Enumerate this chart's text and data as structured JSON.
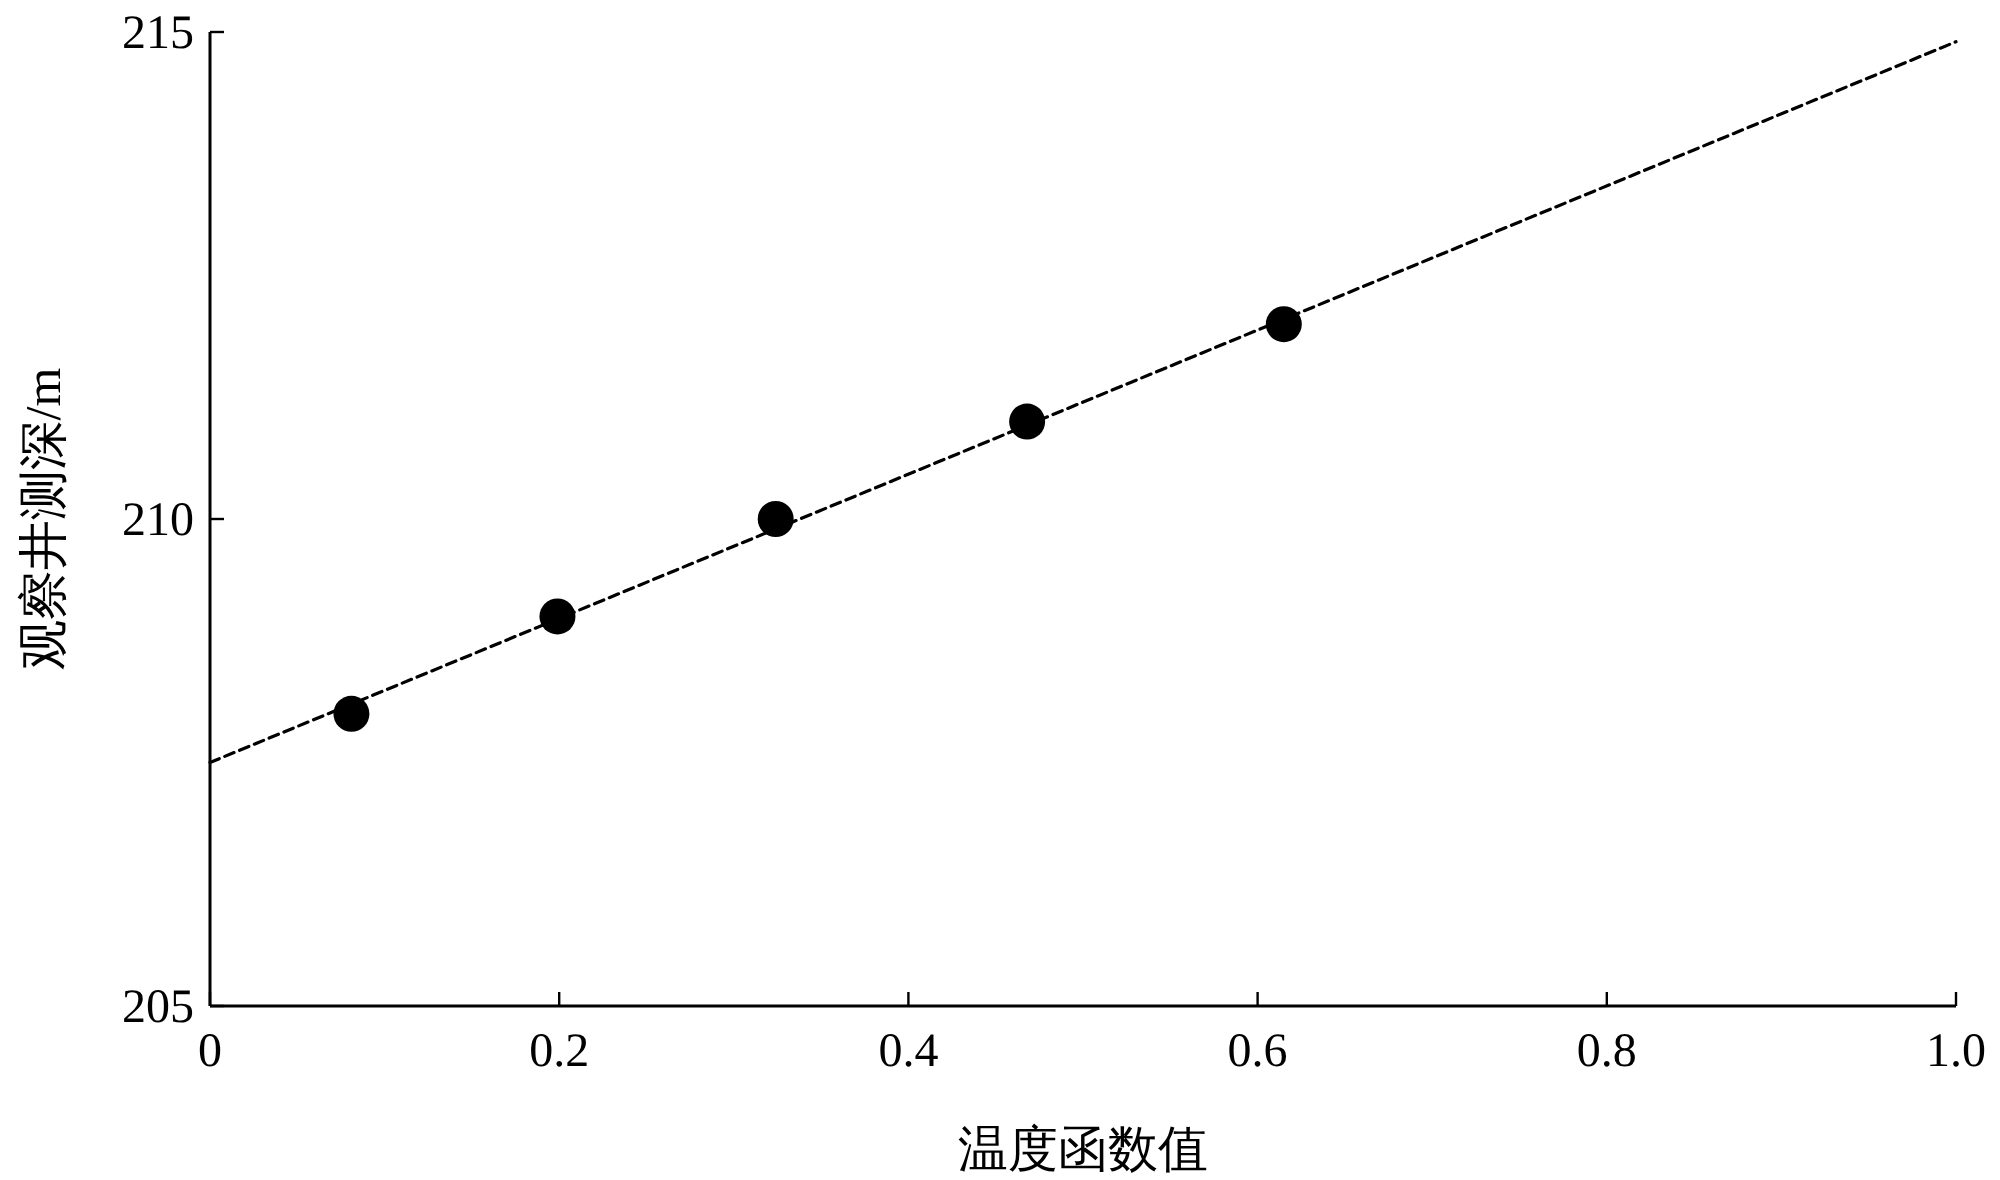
{
  "chart_data": {
    "type": "scatter",
    "xlabel": "温度函数值",
    "ylabel": "观察井测深/m",
    "xlim": [
      0,
      1
    ],
    "ylim": [
      205,
      215
    ],
    "xticks": [
      0,
      0.2,
      0.4,
      0.6,
      0.8,
      {
        "value": 1,
        "label": "1.0"
      }
    ],
    "yticks": [
      205,
      210,
      215
    ],
    "series": [
      {
        "x": [
          0.081,
          0.199,
          0.324,
          0.468,
          0.615
        ],
        "values": [
          208,
          209,
          210,
          211,
          212
        ],
        "color": "#000000",
        "marker": "circle"
      },
      {
        "type": "line",
        "x": [
          0,
          1
        ],
        "values": [
          207.5,
          214.9
        ],
        "color": "#000000",
        "line_style": "dashed",
        "marker": "none"
      }
    ]
  }
}
